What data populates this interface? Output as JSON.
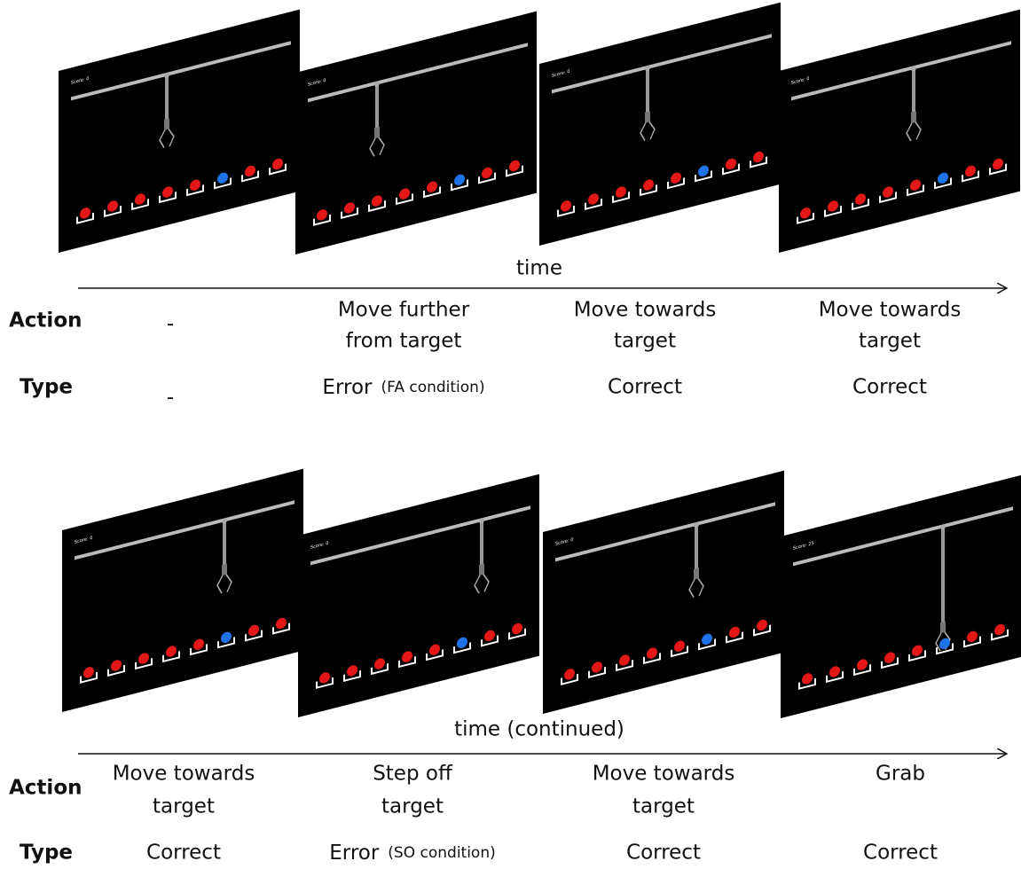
{
  "rows": [
    {
      "axis_label": "time",
      "action_label": "Action",
      "type_label": "Type",
      "steps": [
        {
          "score": "Score: 0",
          "action": [
            "-"
          ],
          "type": "-"
        },
        {
          "score": "Score: 0",
          "action": [
            "Move further",
            "from target"
          ],
          "type": "Error",
          "condition": "(FA condition)"
        },
        {
          "score": "Score: 0",
          "action": [
            "Move towards",
            "target"
          ],
          "type": "Correct"
        },
        {
          "score": "Score: 0",
          "action": [
            "Move towards",
            "target"
          ],
          "type": "Correct"
        }
      ]
    },
    {
      "axis_label": "time (continued)",
      "action_label": "Action",
      "type_label": "Type",
      "steps": [
        {
          "score": "Score: 0",
          "action": [
            "Move towards",
            "target"
          ],
          "type": "Correct"
        },
        {
          "score": "Score: 0",
          "action": [
            "Step off",
            "target"
          ],
          "type": "Error",
          "condition": "(SO condition)"
        },
        {
          "score": "Score: 0",
          "action": [
            "Move towards",
            "target"
          ],
          "type": "Correct"
        },
        {
          "score": "Score: 25",
          "action": [
            "Grab"
          ],
          "type": "Correct"
        }
      ]
    }
  ]
}
